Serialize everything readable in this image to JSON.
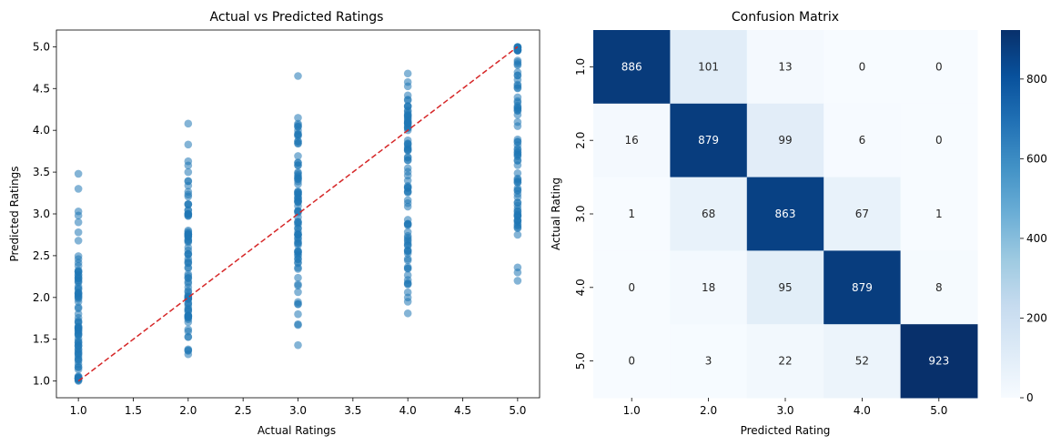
{
  "chart_data": [
    {
      "type": "scatter",
      "title": "Actual vs Predicted Ratings",
      "xlabel": "Actual Ratings",
      "ylabel": "Predicted Ratings",
      "xlim": [
        0.8,
        5.2
      ],
      "ylim": [
        0.8,
        5.2
      ],
      "xticks": [
        "1.0",
        "1.5",
        "2.0",
        "2.5",
        "3.0",
        "3.5",
        "4.0",
        "4.5",
        "5.0"
      ],
      "yticks": [
        "1.0",
        "1.5",
        "2.0",
        "2.5",
        "3.0",
        "3.5",
        "4.0",
        "4.5",
        "5.0"
      ],
      "point_color": "#1f77b4",
      "reference_line": {
        "x": [
          1,
          5
        ],
        "y": [
          1,
          5
        ],
        "color": "#d62728",
        "style": "dashed"
      },
      "groups": [
        {
          "x": 1,
          "y_min": 1.0,
          "y_max": 3.48,
          "dense_min": 1.0,
          "dense_max": 2.5,
          "outliers": [
            3.48,
            3.3,
            3.03,
            2.98,
            2.9,
            2.78,
            2.68
          ]
        },
        {
          "x": 2,
          "y_min": 1.32,
          "y_max": 4.08,
          "dense_min": 1.35,
          "dense_max": 3.4,
          "outliers": [
            4.08,
            3.83,
            3.63,
            3.58,
            3.5,
            1.32
          ]
        },
        {
          "x": 3,
          "y_min": 1.43,
          "y_max": 4.65,
          "dense_min": 1.85,
          "dense_max": 4.1,
          "outliers": [
            4.65,
            4.15,
            1.68,
            1.67,
            1.43,
            1.8
          ]
        },
        {
          "x": 4,
          "y_min": 1.81,
          "y_max": 4.68,
          "dense_min": 2.05,
          "dense_max": 4.6,
          "outliers": [
            4.68,
            1.81,
            1.95,
            2.0
          ]
        },
        {
          "x": 5,
          "y_min": 2.2,
          "y_max": 5.0,
          "dense_min": 2.8,
          "dense_max": 5.0,
          "outliers": [
            2.2,
            2.3,
            2.36,
            2.75
          ]
        }
      ]
    },
    {
      "type": "heatmap",
      "title": "Confusion Matrix",
      "xlabel": "Predicted Rating",
      "ylabel": "Actual Rating",
      "row_labels": [
        "1.0",
        "2.0",
        "3.0",
        "4.0",
        "5.0"
      ],
      "col_labels": [
        "1.0",
        "2.0",
        "3.0",
        "4.0",
        "5.0"
      ],
      "matrix": [
        [
          886,
          101,
          13,
          0,
          0
        ],
        [
          16,
          879,
          99,
          6,
          0
        ],
        [
          1,
          68,
          863,
          67,
          1
        ],
        [
          0,
          18,
          95,
          879,
          8
        ],
        [
          0,
          3,
          22,
          52,
          923
        ]
      ],
      "colormap": "Blues",
      "vmin": 0,
      "vmax": 923,
      "colorbar_ticks": [
        "0",
        "200",
        "400",
        "600",
        "800"
      ]
    }
  ]
}
